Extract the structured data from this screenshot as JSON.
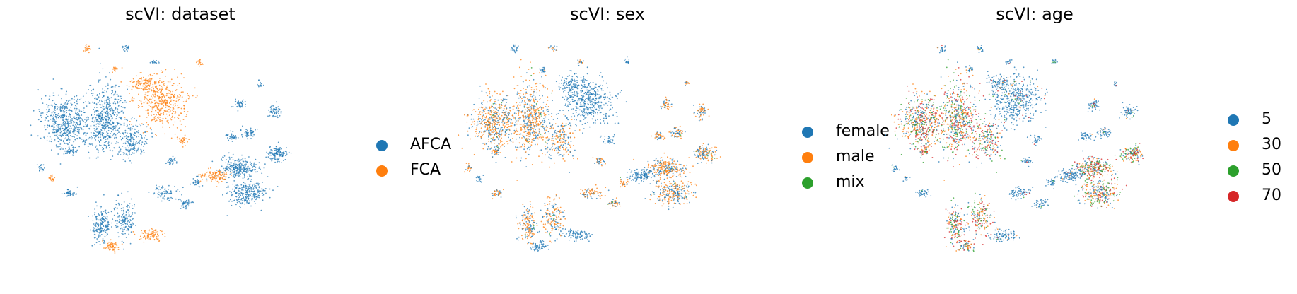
{
  "colors": {
    "blue": "#1f77b4",
    "orange": "#ff7f0e",
    "green": "#2ca02c",
    "red": "#d62728"
  },
  "chart_data": [
    {
      "type": "scatter",
      "title": "scVI: dataset",
      "axes": "off",
      "grid": false,
      "legend_position": "right",
      "legend": [
        {
          "label": "AFCA",
          "color": "#1f77b4"
        },
        {
          "label": "FCA",
          "color": "#ff7f0e"
        }
      ]
    },
    {
      "type": "scatter",
      "title": "scVI: sex",
      "axes": "off",
      "grid": false,
      "legend_position": "right",
      "legend": [
        {
          "label": "female",
          "color": "#1f77b4"
        },
        {
          "label": "male",
          "color": "#ff7f0e"
        },
        {
          "label": "mix",
          "color": "#2ca02c"
        }
      ]
    },
    {
      "type": "scatter",
      "title": "scVI: age",
      "axes": "off",
      "grid": false,
      "legend_position": "right",
      "legend": [
        {
          "label": "5",
          "color": "#1f77b4"
        },
        {
          "label": "30",
          "color": "#ff7f0e"
        },
        {
          "label": "50",
          "color": "#2ca02c"
        },
        {
          "label": "70",
          "color": "#d62728"
        }
      ]
    }
  ]
}
